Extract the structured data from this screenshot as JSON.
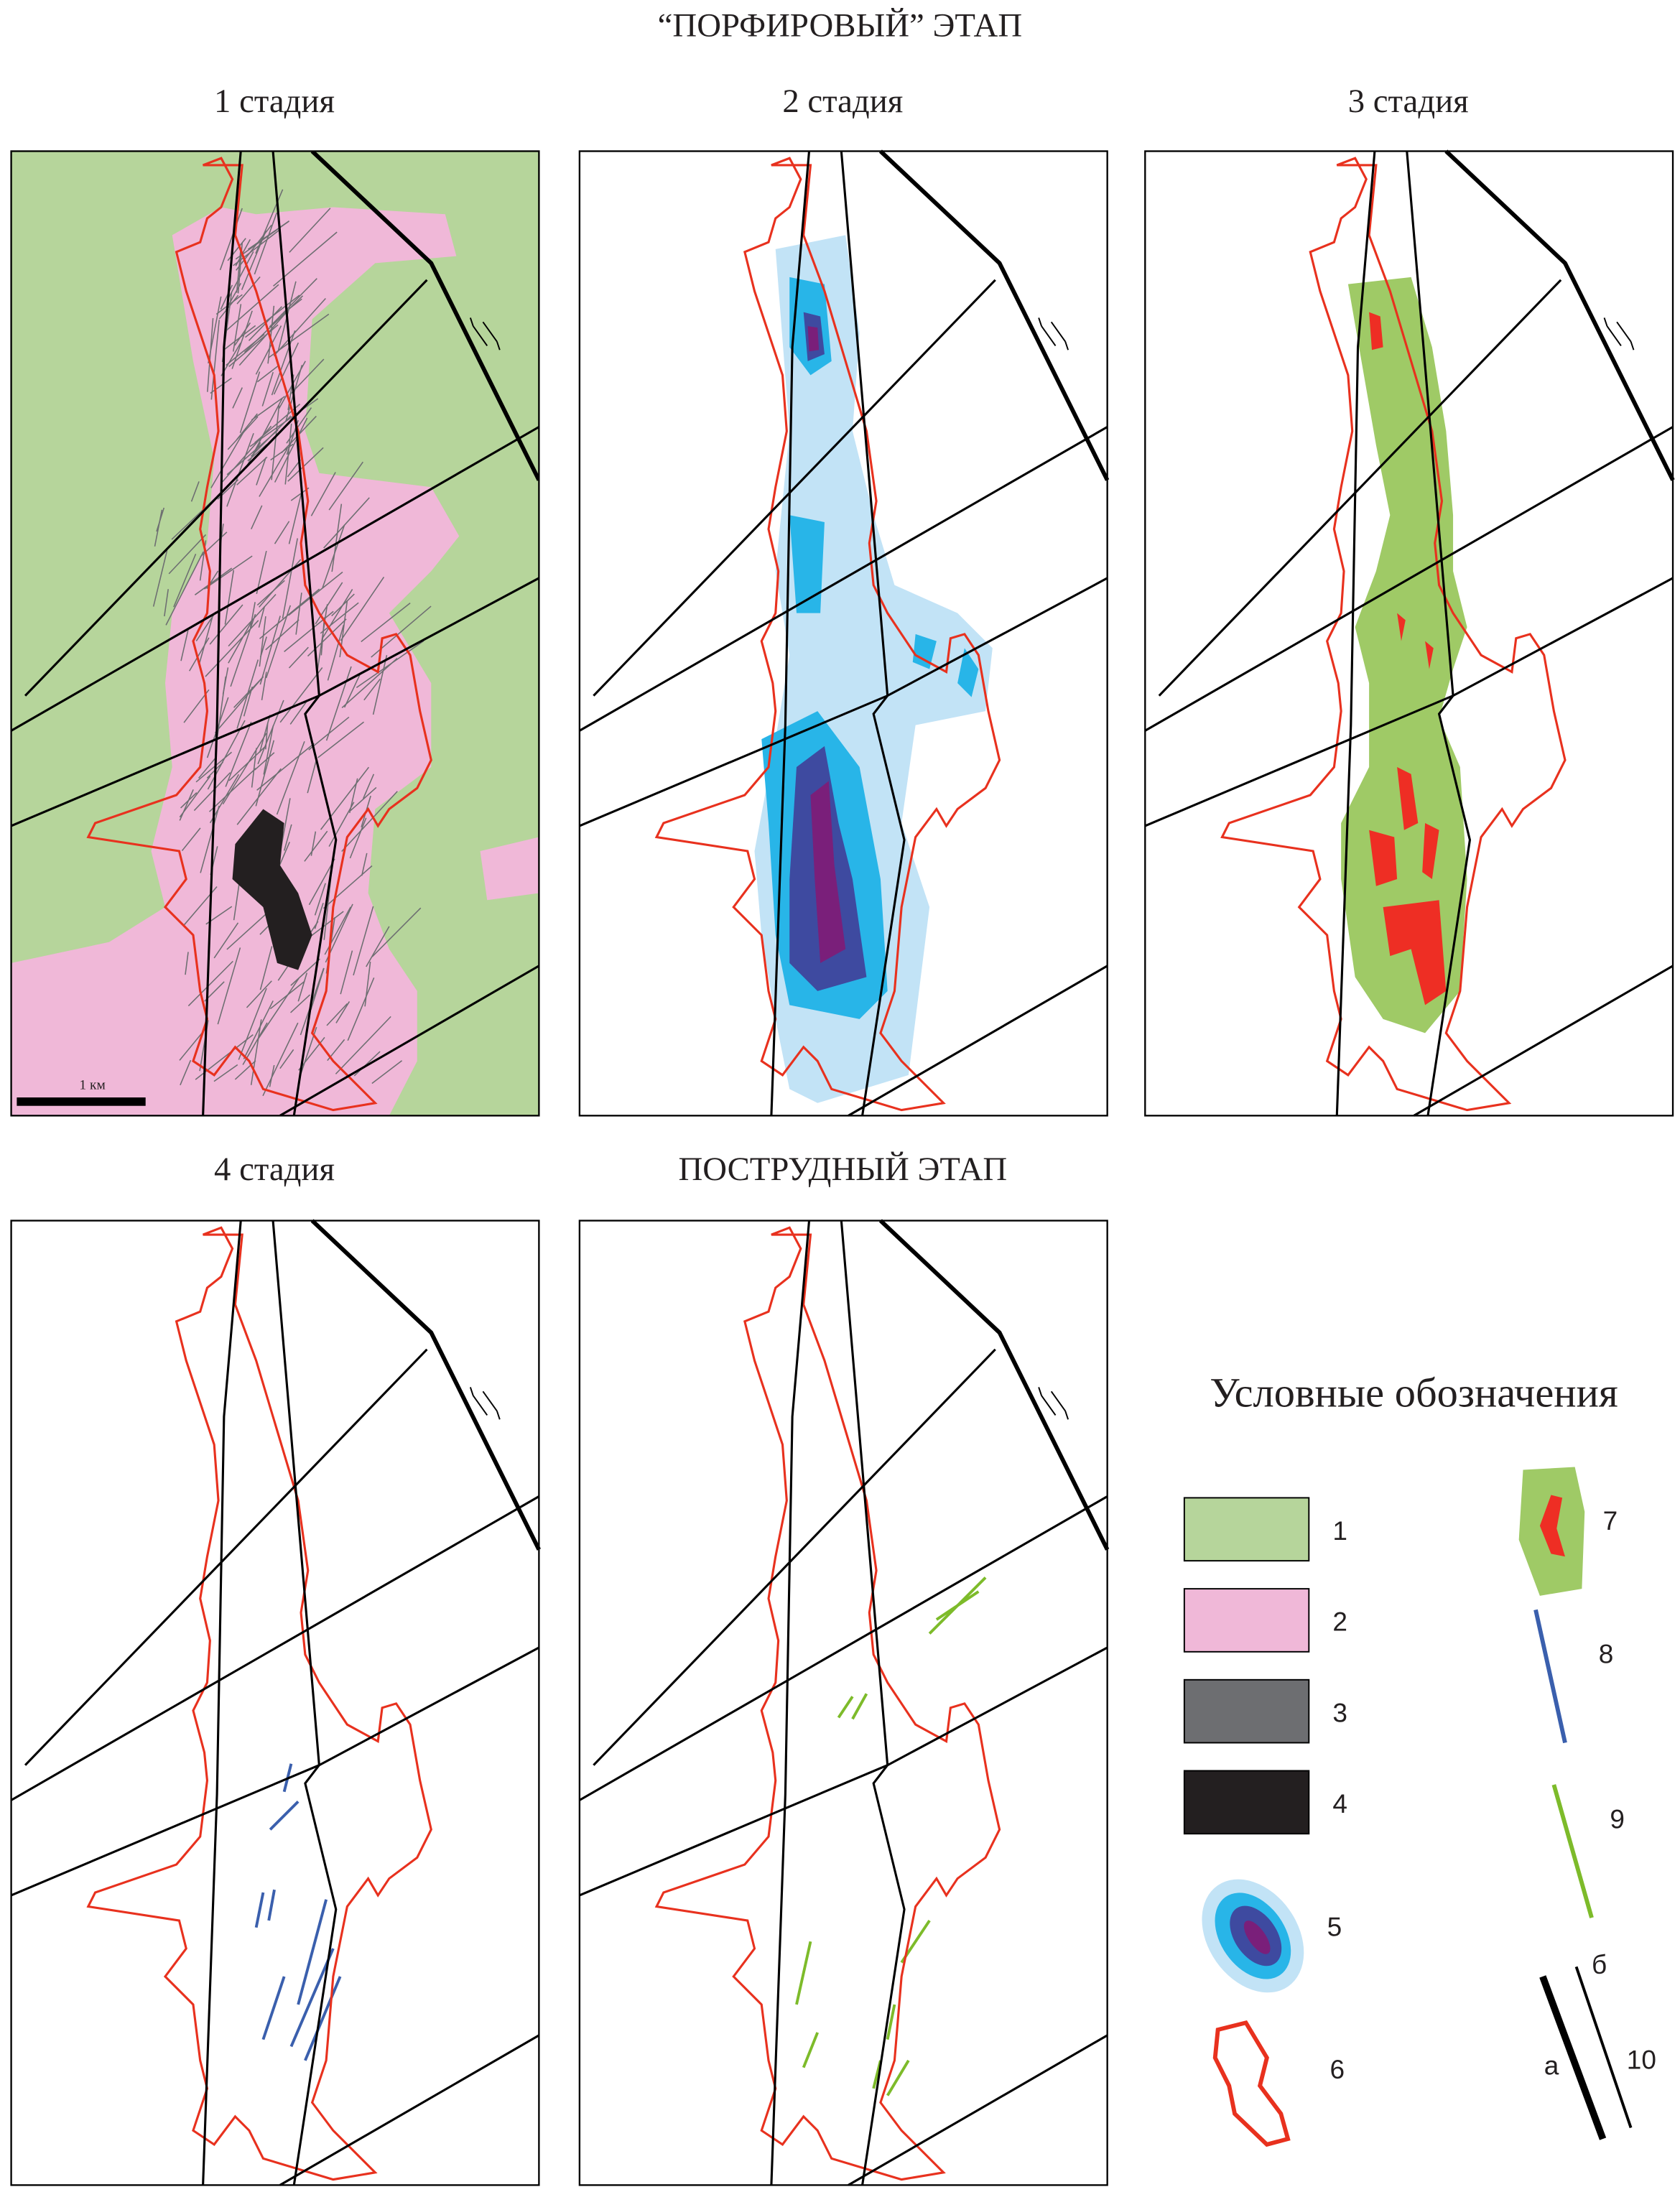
{
  "header": {
    "title": "“ПОРФИРОВЫЙ” ЭТАП"
  },
  "panels": [
    {
      "title": "1 стадия"
    },
    {
      "title": "2 стадия"
    },
    {
      "title": "3 стадия"
    },
    {
      "title": "4 стадия"
    }
  ],
  "post_stage": {
    "title": "ПОСТРУДНЫЙ ЭТАП"
  },
  "scale_bar": {
    "label": "1 км"
  },
  "legend": {
    "title": "Условные обозначения",
    "items": [
      "1",
      "2",
      "3",
      "4",
      "5",
      "6",
      "7",
      "8",
      "9",
      "10"
    ],
    "sub_a": "а",
    "sub_b": "б"
  }
}
